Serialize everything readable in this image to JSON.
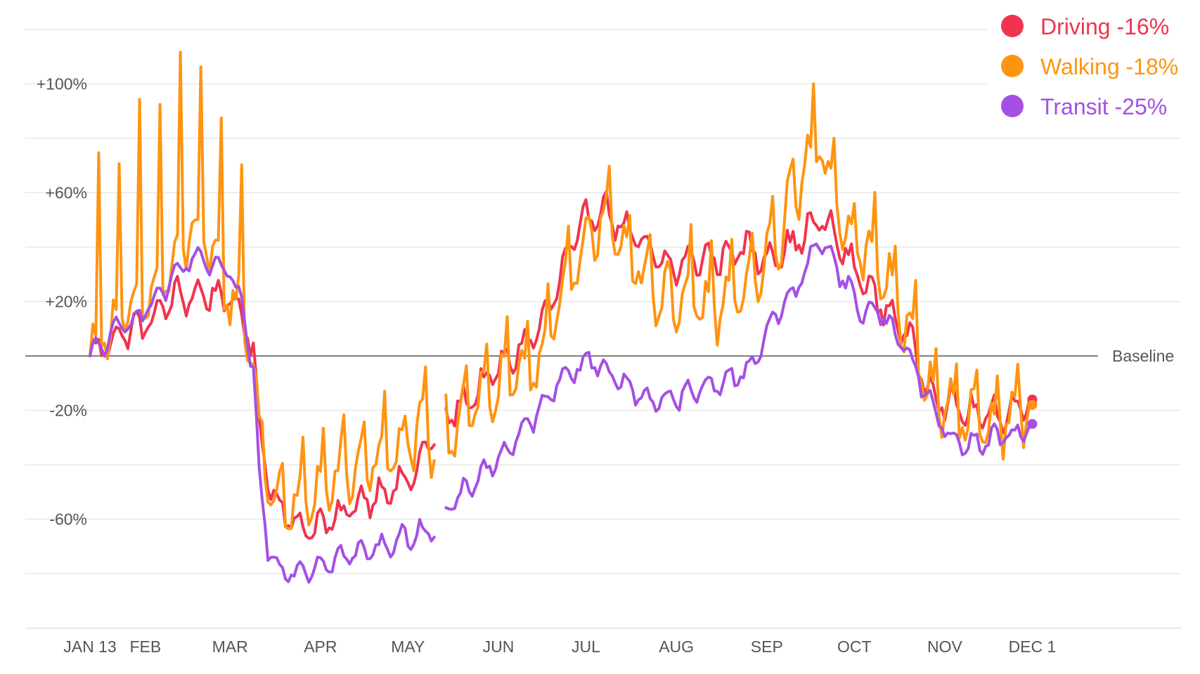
{
  "chart_data": {
    "type": "line",
    "title": "",
    "xlabel": "",
    "ylabel": "",
    "ylim": [
      -105,
      135
    ],
    "y_ticks": [
      {
        "value": 100,
        "label": "+100%"
      },
      {
        "value": 60,
        "label": "+60%"
      },
      {
        "value": 20,
        "label": "+20%"
      },
      {
        "value": -20,
        "label": "-20%"
      },
      {
        "value": -60,
        "label": "-60%"
      }
    ],
    "x_ticks": [
      {
        "day": 0,
        "label": "JAN 13"
      },
      {
        "day": 19,
        "label": "FEB"
      },
      {
        "day": 48,
        "label": "MAR"
      },
      {
        "day": 79,
        "label": "APR"
      },
      {
        "day": 109,
        "label": "MAY"
      },
      {
        "day": 140,
        "label": "JUN"
      },
      {
        "day": 170,
        "label": "JUL"
      },
      {
        "day": 201,
        "label": "AUG"
      },
      {
        "day": 232,
        "label": "SEP"
      },
      {
        "day": 262,
        "label": "OCT"
      },
      {
        "day": 293,
        "label": "NOV"
      },
      {
        "day": 323,
        "label": "DEC 1"
      }
    ],
    "baseline": {
      "value": 0,
      "label": "Baseline"
    },
    "grid": true,
    "legend": "top-right",
    "missing_ranges": [
      [
        119,
        121
      ]
    ],
    "series": [
      {
        "name": "Driving",
        "legend_label": "Driving -16%",
        "color": "#f0344f",
        "end_value": -16,
        "keypoints": [
          [
            0,
            0
          ],
          [
            5,
            4
          ],
          [
            10,
            8
          ],
          [
            15,
            10
          ],
          [
            20,
            12
          ],
          [
            25,
            18
          ],
          [
            30,
            22
          ],
          [
            35,
            22
          ],
          [
            40,
            23
          ],
          [
            45,
            22
          ],
          [
            48,
            20
          ],
          [
            52,
            15
          ],
          [
            56,
            2
          ],
          [
            58,
            -25
          ],
          [
            61,
            -45
          ],
          [
            65,
            -55
          ],
          [
            70,
            -62
          ],
          [
            75,
            -63
          ],
          [
            80,
            -62
          ],
          [
            85,
            -60
          ],
          [
            90,
            -55
          ],
          [
            95,
            -52
          ],
          [
            100,
            -50
          ],
          [
            105,
            -48
          ],
          [
            110,
            -45
          ],
          [
            115,
            -35
          ],
          [
            118,
            -28
          ],
          [
            121,
            -22
          ],
          [
            125,
            -20
          ],
          [
            130,
            -16
          ],
          [
            135,
            -10
          ],
          [
            140,
            -5
          ],
          [
            145,
            0
          ],
          [
            150,
            5
          ],
          [
            155,
            12
          ],
          [
            160,
            25
          ],
          [
            165,
            40
          ],
          [
            170,
            50
          ],
          [
            175,
            55
          ],
          [
            180,
            50
          ],
          [
            185,
            45
          ],
          [
            190,
            40
          ],
          [
            195,
            35
          ],
          [
            200,
            32
          ],
          [
            205,
            35
          ],
          [
            210,
            36
          ],
          [
            215,
            36
          ],
          [
            220,
            38
          ],
          [
            225,
            40
          ],
          [
            230,
            36
          ],
          [
            235,
            38
          ],
          [
            240,
            40
          ],
          [
            245,
            45
          ],
          [
            250,
            50
          ],
          [
            255,
            45
          ],
          [
            260,
            35
          ],
          [
            265,
            28
          ],
          [
            270,
            20
          ],
          [
            275,
            15
          ],
          [
            280,
            8
          ],
          [
            285,
            -5
          ],
          [
            290,
            -15
          ],
          [
            295,
            -18
          ],
          [
            300,
            -20
          ],
          [
            305,
            -22
          ],
          [
            310,
            -22
          ],
          [
            315,
            -20
          ],
          [
            320,
            -18
          ],
          [
            323,
            -16
          ]
        ]
      },
      {
        "name": "Walking",
        "legend_label": "Walking -18%",
        "color": "#ff9411",
        "end_value": -18,
        "keypoints": [
          [
            0,
            0
          ],
          [
            5,
            10
          ],
          [
            10,
            14
          ],
          [
            15,
            16
          ],
          [
            20,
            22
          ],
          [
            25,
            28
          ],
          [
            30,
            36
          ],
          [
            35,
            48
          ],
          [
            40,
            40
          ],
          [
            45,
            28
          ],
          [
            48,
            22
          ],
          [
            52,
            15
          ],
          [
            56,
            0
          ],
          [
            58,
            -30
          ],
          [
            61,
            -50
          ],
          [
            65,
            -55
          ],
          [
            70,
            -56
          ],
          [
            75,
            -52
          ],
          [
            80,
            -48
          ],
          [
            85,
            -45
          ],
          [
            90,
            -42
          ],
          [
            95,
            -40
          ],
          [
            100,
            -36
          ],
          [
            105,
            -38
          ],
          [
            110,
            -32
          ],
          [
            115,
            -28
          ],
          [
            118,
            -35
          ],
          [
            121,
            -30
          ],
          [
            125,
            -25
          ],
          [
            130,
            -18
          ],
          [
            135,
            -15
          ],
          [
            140,
            -12
          ],
          [
            145,
            -10
          ],
          [
            150,
            -5
          ],
          [
            155,
            2
          ],
          [
            160,
            15
          ],
          [
            165,
            28
          ],
          [
            170,
            42
          ],
          [
            175,
            48
          ],
          [
            180,
            45
          ],
          [
            185,
            38
          ],
          [
            190,
            30
          ],
          [
            195,
            22
          ],
          [
            200,
            20
          ],
          [
            205,
            20
          ],
          [
            210,
            18
          ],
          [
            215,
            18
          ],
          [
            220,
            20
          ],
          [
            225,
            26
          ],
          [
            230,
            30
          ],
          [
            235,
            40
          ],
          [
            240,
            55
          ],
          [
            245,
            70
          ],
          [
            250,
            78
          ],
          [
            255,
            60
          ],
          [
            260,
            45
          ],
          [
            265,
            38
          ],
          [
            270,
            32
          ],
          [
            275,
            25
          ],
          [
            280,
            10
          ],
          [
            285,
            -5
          ],
          [
            290,
            -15
          ],
          [
            295,
            -20
          ],
          [
            300,
            -22
          ],
          [
            305,
            -24
          ],
          [
            310,
            -25
          ],
          [
            315,
            -23
          ],
          [
            320,
            -20
          ],
          [
            323,
            -18
          ]
        ]
      },
      {
        "name": "Transit",
        "legend_label": "Transit -25%",
        "color": "#a450e4",
        "end_value": -25,
        "keypoints": [
          [
            0,
            0
          ],
          [
            5,
            5
          ],
          [
            10,
            10
          ],
          [
            15,
            14
          ],
          [
            20,
            18
          ],
          [
            25,
            24
          ],
          [
            30,
            30
          ],
          [
            35,
            36
          ],
          [
            40,
            34
          ],
          [
            45,
            32
          ],
          [
            48,
            30
          ],
          [
            52,
            18
          ],
          [
            56,
            -5
          ],
          [
            58,
            -45
          ],
          [
            61,
            -70
          ],
          [
            65,
            -78
          ],
          [
            70,
            -79
          ],
          [
            75,
            -78
          ],
          [
            80,
            -76
          ],
          [
            85,
            -74
          ],
          [
            90,
            -73
          ],
          [
            95,
            -72
          ],
          [
            100,
            -70
          ],
          [
            105,
            -68
          ],
          [
            110,
            -66
          ],
          [
            115,
            -64
          ],
          [
            118,
            -63
          ],
          [
            121,
            -58
          ],
          [
            125,
            -54
          ],
          [
            130,
            -48
          ],
          [
            135,
            -42
          ],
          [
            140,
            -38
          ],
          [
            145,
            -32
          ],
          [
            150,
            -26
          ],
          [
            155,
            -18
          ],
          [
            160,
            -10
          ],
          [
            165,
            -5
          ],
          [
            170,
            -2
          ],
          [
            175,
            -3
          ],
          [
            180,
            -8
          ],
          [
            185,
            -12
          ],
          [
            190,
            -15
          ],
          [
            195,
            -16
          ],
          [
            200,
            -16
          ],
          [
            205,
            -14
          ],
          [
            210,
            -12
          ],
          [
            215,
            -10
          ],
          [
            220,
            -8
          ],
          [
            225,
            -6
          ],
          [
            230,
            4
          ],
          [
            235,
            15
          ],
          [
            240,
            22
          ],
          [
            245,
            30
          ],
          [
            250,
            44
          ],
          [
            255,
            35
          ],
          [
            260,
            25
          ],
          [
            265,
            15
          ],
          [
            270,
            18
          ],
          [
            275,
            10
          ],
          [
            280,
            2
          ],
          [
            285,
            -10
          ],
          [
            290,
            -22
          ],
          [
            295,
            -30
          ],
          [
            300,
            -32
          ],
          [
            305,
            -32
          ],
          [
            310,
            -30
          ],
          [
            315,
            -29
          ],
          [
            320,
            -28
          ],
          [
            323,
            -25
          ]
        ]
      }
    ]
  }
}
